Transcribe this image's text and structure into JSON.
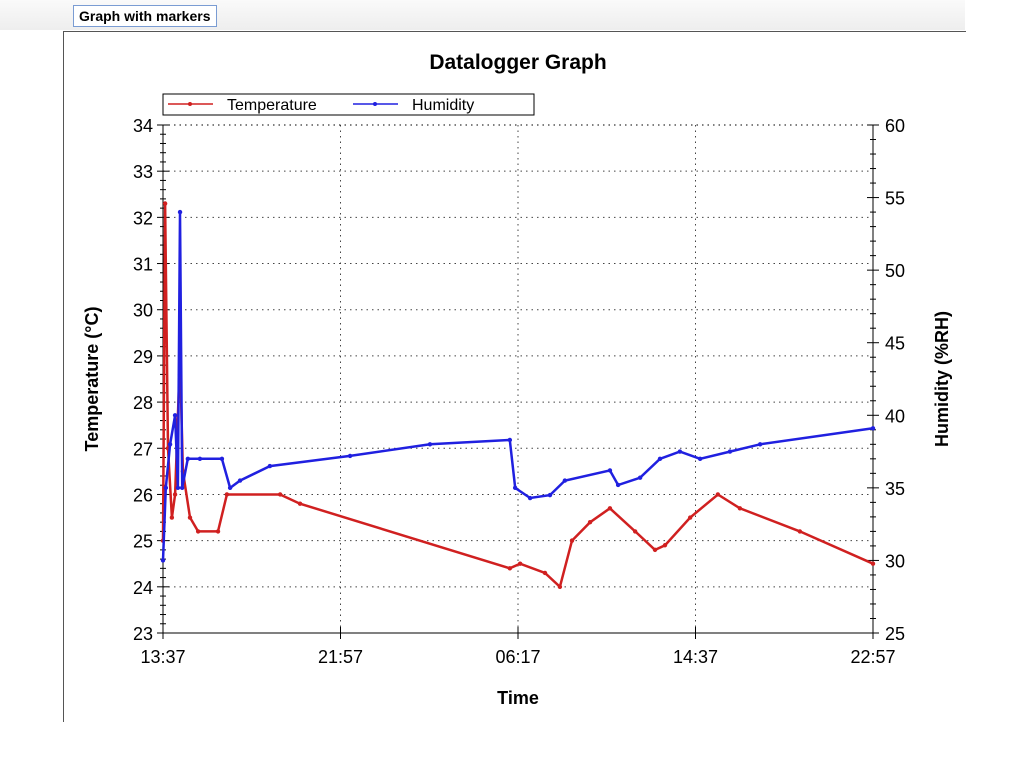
{
  "tab": {
    "label": "Graph with markers"
  },
  "colors": {
    "temperature": "#d02020",
    "humidity": "#2020e0"
  },
  "chart_data": {
    "type": "line",
    "title": "Datalogger Graph",
    "xlabel": "Time",
    "ylabel": "Temperature (°C)",
    "y2label": "Humidity (%RH)",
    "x_unit": "minutes since 13:37",
    "xlim": [
      0,
      2000
    ],
    "xticks": [
      0,
      500,
      1000,
      1500,
      2000
    ],
    "xtick_labels": [
      "13:37",
      "21:57",
      "06:17",
      "14:37",
      "22:57"
    ],
    "ylim": [
      23,
      34
    ],
    "yticks": [
      "23",
      "24",
      "25",
      "26",
      "27",
      "28",
      "29",
      "30",
      "31",
      "32",
      "33",
      "34"
    ],
    "y2lim": [
      25,
      60
    ],
    "y2ticks": [
      "25",
      "30",
      "35",
      "40",
      "45",
      "50",
      "55",
      "60"
    ],
    "grid": true,
    "legend": "top-left",
    "series": [
      {
        "name": "Temperature",
        "axis": "left",
        "x": [
          0,
          6,
          14,
          25,
          34,
          48,
          56,
          76,
          99,
          155,
          180,
          330,
          386,
          977,
          1006,
          1076,
          1118,
          1152,
          1203,
          1259,
          1330,
          1386,
          1414,
          1485,
          1563,
          1625,
          1794,
          2000
        ],
        "y": [
          25,
          32.3,
          27,
          25.5,
          26,
          29,
          26.5,
          25.5,
          25.2,
          25.2,
          26,
          26,
          25.8,
          24.4,
          24.5,
          24.3,
          24.0,
          25,
          25.4,
          25.7,
          25.2,
          24.8,
          24.9,
          25.5,
          26,
          25.7,
          25.2,
          24.5
        ]
      },
      {
        "name": "Humidity",
        "axis": "right",
        "x": [
          0,
          8,
          20,
          34,
          42,
          48,
          54,
          70,
          104,
          166,
          189,
          217,
          301,
          527,
          752,
          977,
          992,
          1034,
          1090,
          1132,
          1259,
          1282,
          1344,
          1400,
          1456,
          1513,
          1597,
          1682,
          2000
        ],
        "y": [
          30,
          35,
          38,
          40,
          35,
          54,
          35,
          37,
          37,
          37,
          35,
          35.5,
          36.5,
          37.2,
          38,
          38.3,
          35,
          34.3,
          34.5,
          35.5,
          36.2,
          35.2,
          35.7,
          37,
          37.5,
          37,
          37.5,
          38,
          39.1
        ]
      }
    ]
  }
}
